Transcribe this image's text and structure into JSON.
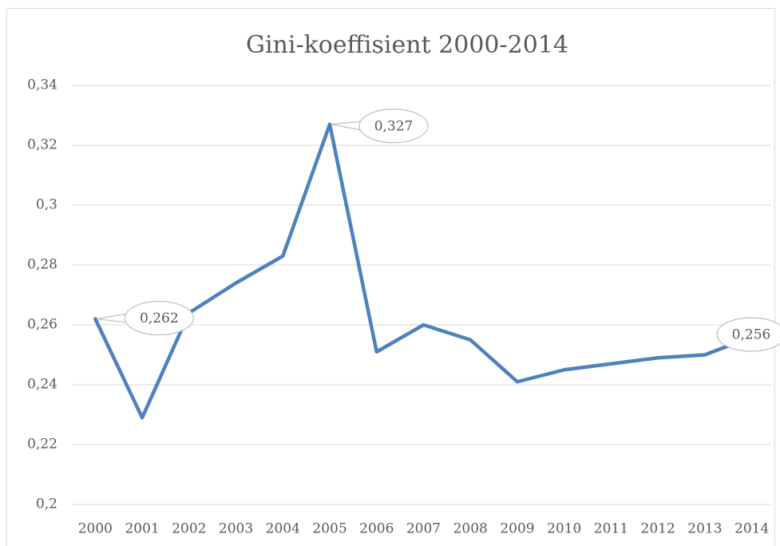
{
  "chart_data": {
    "type": "line",
    "title": "Gini-koeffisient 2000-2014",
    "categories": [
      "2000",
      "2001",
      "2002",
      "2003",
      "2004",
      "2005",
      "2006",
      "2007",
      "2008",
      "2009",
      "2010",
      "2011",
      "2012",
      "2013",
      "2014"
    ],
    "series": [
      {
        "name": "Gini-koeffisient",
        "color": "#4f81bd",
        "values": [
          0.262,
          0.229,
          0.264,
          0.274,
          0.283,
          0.327,
          0.251,
          0.26,
          0.255,
          0.241,
          0.245,
          0.247,
          0.249,
          0.25,
          0.256
        ],
        "value_labels": [
          "0,262",
          null,
          null,
          null,
          null,
          "0,327",
          null,
          null,
          null,
          null,
          null,
          null,
          null,
          null,
          "0,256"
        ]
      }
    ],
    "ylim": [
      0.2,
      0.34
    ],
    "yticks": [
      {
        "value": 0.2,
        "label": "0,2"
      },
      {
        "value": 0.22,
        "label": "0,22"
      },
      {
        "value": 0.24,
        "label": "0,24"
      },
      {
        "value": 0.26,
        "label": "0,26"
      },
      {
        "value": 0.28,
        "label": "0,28"
      },
      {
        "value": 0.3,
        "label": "0,3"
      },
      {
        "value": 0.32,
        "label": "0,32"
      },
      {
        "value": 0.34,
        "label": "0,34"
      }
    ],
    "grid": true
  }
}
